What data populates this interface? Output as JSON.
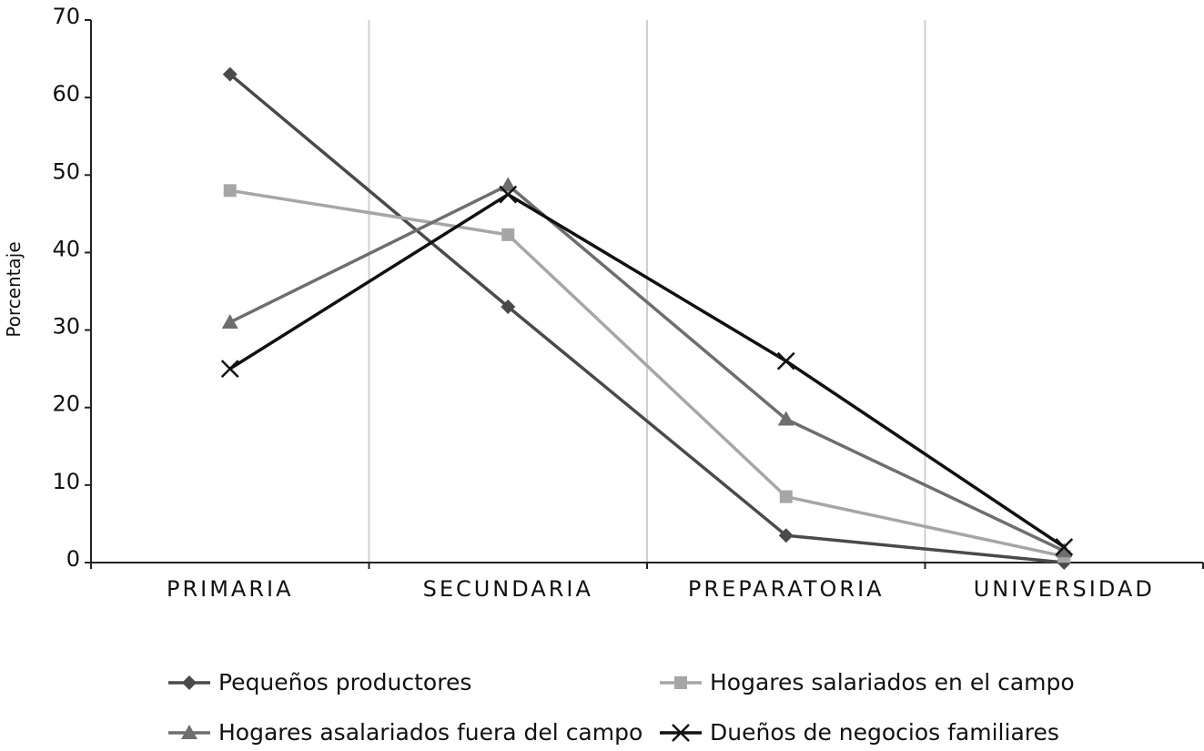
{
  "chart_data": {
    "type": "line",
    "categories": [
      "PRIMARIA",
      "SECUNDARIA",
      "PREPARATORIA",
      "UNIVERSIDAD"
    ],
    "ylabel": "Porcentaje",
    "xlabel": "",
    "ylim": [
      0,
      70
    ],
    "yticks": [
      "0",
      "10",
      "20",
      "30",
      "40",
      "50",
      "60",
      "70"
    ],
    "grid": "vertical",
    "legend_position": "bottom",
    "series": [
      {
        "name": "Pequeños productores",
        "values": [
          63,
          33,
          3.5,
          0
        ],
        "color": "#4a4a4a",
        "marker": "diamond"
      },
      {
        "name": "Hogares salariados en el campo",
        "values": [
          48,
          42.3,
          8.5,
          0.8
        ],
        "color": "#a6a6a6",
        "marker": "square"
      },
      {
        "name": "Hogares asalariados fuera del campo",
        "values": [
          31,
          48.7,
          18.5,
          1.5
        ],
        "color": "#6e6e6e",
        "marker": "triangle"
      },
      {
        "name": "Dueños de negocios familiares",
        "values": [
          25,
          47.5,
          26,
          2
        ],
        "color": "#111111",
        "marker": "x"
      }
    ]
  }
}
